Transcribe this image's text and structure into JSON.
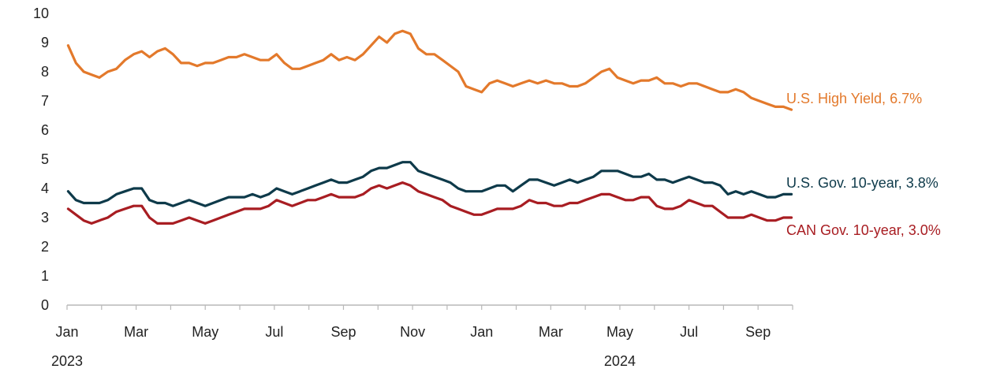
{
  "chart_data": {
    "type": "line",
    "title": "",
    "xlabel": "",
    "ylabel": "",
    "ylim": [
      0,
      10
    ],
    "yticks": [
      "0",
      "1",
      "2",
      "3",
      "4",
      "5",
      "6",
      "7",
      "8",
      "9",
      "10"
    ],
    "grid": false,
    "legend": "inline labels at right end of each line",
    "x_tick_labels": [
      "Jan",
      "Mar",
      "May",
      "Jul",
      "Sep",
      "Nov",
      "Jan",
      "Mar",
      "May",
      "Jul",
      "Sep"
    ],
    "x_tick_dates": [
      "2023-01",
      "2023-03",
      "2023-05",
      "2023-07",
      "2023-09",
      "2023-11",
      "2024-01",
      "2024-03",
      "2024-05",
      "2024-07",
      "2024-09"
    ],
    "year_labels": [
      {
        "label": "2023",
        "date": "2023-01"
      },
      {
        "label": "2024",
        "date": "2024-05"
      }
    ],
    "x_range": [
      "2023-01",
      "2024-10"
    ],
    "series": [
      {
        "name": "U.S. High Yield, 6.7%",
        "color": "#E3792B",
        "points": [
          [
            "2023-01-02",
            8.9
          ],
          [
            "2023-01-09",
            8.3
          ],
          [
            "2023-01-16",
            8.0
          ],
          [
            "2023-01-23",
            7.9
          ],
          [
            "2023-01-30",
            7.8
          ],
          [
            "2023-02-06",
            8.0
          ],
          [
            "2023-02-13",
            8.1
          ],
          [
            "2023-02-20",
            8.4
          ],
          [
            "2023-02-27",
            8.6
          ],
          [
            "2023-03-06",
            8.7
          ],
          [
            "2023-03-13",
            8.5
          ],
          [
            "2023-03-20",
            8.7
          ],
          [
            "2023-03-27",
            8.8
          ],
          [
            "2023-04-03",
            8.6
          ],
          [
            "2023-04-10",
            8.3
          ],
          [
            "2023-04-17",
            8.3
          ],
          [
            "2023-04-24",
            8.2
          ],
          [
            "2023-05-01",
            8.3
          ],
          [
            "2023-05-08",
            8.3
          ],
          [
            "2023-05-15",
            8.4
          ],
          [
            "2023-05-22",
            8.5
          ],
          [
            "2023-05-29",
            8.5
          ],
          [
            "2023-06-05",
            8.6
          ],
          [
            "2023-06-12",
            8.5
          ],
          [
            "2023-06-19",
            8.4
          ],
          [
            "2023-06-26",
            8.4
          ],
          [
            "2023-07-03",
            8.6
          ],
          [
            "2023-07-10",
            8.3
          ],
          [
            "2023-07-17",
            8.1
          ],
          [
            "2023-07-24",
            8.1
          ],
          [
            "2023-07-31",
            8.2
          ],
          [
            "2023-08-07",
            8.3
          ],
          [
            "2023-08-14",
            8.4
          ],
          [
            "2023-08-21",
            8.6
          ],
          [
            "2023-08-28",
            8.4
          ],
          [
            "2023-09-04",
            8.5
          ],
          [
            "2023-09-11",
            8.4
          ],
          [
            "2023-09-18",
            8.6
          ],
          [
            "2023-09-25",
            8.9
          ],
          [
            "2023-10-02",
            9.2
          ],
          [
            "2023-10-09",
            9.0
          ],
          [
            "2023-10-16",
            9.3
          ],
          [
            "2023-10-23",
            9.4
          ],
          [
            "2023-10-30",
            9.3
          ],
          [
            "2023-11-06",
            8.8
          ],
          [
            "2023-11-13",
            8.6
          ],
          [
            "2023-11-20",
            8.6
          ],
          [
            "2023-11-27",
            8.4
          ],
          [
            "2023-12-04",
            8.2
          ],
          [
            "2023-12-11",
            8.0
          ],
          [
            "2023-12-18",
            7.5
          ],
          [
            "2023-12-25",
            7.4
          ],
          [
            "2024-01-01",
            7.3
          ],
          [
            "2024-01-08",
            7.6
          ],
          [
            "2024-01-15",
            7.7
          ],
          [
            "2024-01-22",
            7.6
          ],
          [
            "2024-01-29",
            7.5
          ],
          [
            "2024-02-05",
            7.6
          ],
          [
            "2024-02-12",
            7.7
          ],
          [
            "2024-02-19",
            7.6
          ],
          [
            "2024-02-26",
            7.7
          ],
          [
            "2024-03-04",
            7.6
          ],
          [
            "2024-03-11",
            7.6
          ],
          [
            "2024-03-18",
            7.5
          ],
          [
            "2024-03-25",
            7.5
          ],
          [
            "2024-04-01",
            7.6
          ],
          [
            "2024-04-08",
            7.8
          ],
          [
            "2024-04-15",
            8.0
          ],
          [
            "2024-04-22",
            8.1
          ],
          [
            "2024-04-29",
            7.8
          ],
          [
            "2024-05-06",
            7.7
          ],
          [
            "2024-05-13",
            7.6
          ],
          [
            "2024-05-20",
            7.7
          ],
          [
            "2024-05-27",
            7.7
          ],
          [
            "2024-06-03",
            7.8
          ],
          [
            "2024-06-10",
            7.6
          ],
          [
            "2024-06-17",
            7.6
          ],
          [
            "2024-06-24",
            7.5
          ],
          [
            "2024-07-01",
            7.6
          ],
          [
            "2024-07-08",
            7.6
          ],
          [
            "2024-07-15",
            7.5
          ],
          [
            "2024-07-22",
            7.4
          ],
          [
            "2024-07-29",
            7.3
          ],
          [
            "2024-08-05",
            7.3
          ],
          [
            "2024-08-12",
            7.4
          ],
          [
            "2024-08-19",
            7.3
          ],
          [
            "2024-08-26",
            7.1
          ],
          [
            "2024-09-02",
            7.0
          ],
          [
            "2024-09-09",
            6.9
          ],
          [
            "2024-09-16",
            6.8
          ],
          [
            "2024-09-23",
            6.8
          ],
          [
            "2024-09-30",
            6.7
          ]
        ]
      },
      {
        "name": "U.S. Gov. 10-year, 3.8%",
        "color": "#0E3A4A",
        "points": [
          [
            "2023-01-02",
            3.9
          ],
          [
            "2023-01-09",
            3.6
          ],
          [
            "2023-01-16",
            3.5
          ],
          [
            "2023-01-23",
            3.5
          ],
          [
            "2023-01-30",
            3.5
          ],
          [
            "2023-02-06",
            3.6
          ],
          [
            "2023-02-13",
            3.8
          ],
          [
            "2023-02-20",
            3.9
          ],
          [
            "2023-02-27",
            4.0
          ],
          [
            "2023-03-06",
            4.0
          ],
          [
            "2023-03-13",
            3.6
          ],
          [
            "2023-03-20",
            3.5
          ],
          [
            "2023-03-27",
            3.5
          ],
          [
            "2023-04-03",
            3.4
          ],
          [
            "2023-04-10",
            3.5
          ],
          [
            "2023-04-17",
            3.6
          ],
          [
            "2023-04-24",
            3.5
          ],
          [
            "2023-05-01",
            3.4
          ],
          [
            "2023-05-08",
            3.5
          ],
          [
            "2023-05-15",
            3.6
          ],
          [
            "2023-05-22",
            3.7
          ],
          [
            "2023-05-29",
            3.7
          ],
          [
            "2023-06-05",
            3.7
          ],
          [
            "2023-06-12",
            3.8
          ],
          [
            "2023-06-19",
            3.7
          ],
          [
            "2023-06-26",
            3.8
          ],
          [
            "2023-07-03",
            4.0
          ],
          [
            "2023-07-10",
            3.9
          ],
          [
            "2023-07-17",
            3.8
          ],
          [
            "2023-07-24",
            3.9
          ],
          [
            "2023-07-31",
            4.0
          ],
          [
            "2023-08-07",
            4.1
          ],
          [
            "2023-08-14",
            4.2
          ],
          [
            "2023-08-21",
            4.3
          ],
          [
            "2023-08-28",
            4.2
          ],
          [
            "2023-09-04",
            4.2
          ],
          [
            "2023-09-11",
            4.3
          ],
          [
            "2023-09-18",
            4.4
          ],
          [
            "2023-09-25",
            4.6
          ],
          [
            "2023-10-02",
            4.7
          ],
          [
            "2023-10-09",
            4.7
          ],
          [
            "2023-10-16",
            4.8
          ],
          [
            "2023-10-23",
            4.9
          ],
          [
            "2023-10-30",
            4.9
          ],
          [
            "2023-11-06",
            4.6
          ],
          [
            "2023-11-13",
            4.5
          ],
          [
            "2023-11-20",
            4.4
          ],
          [
            "2023-11-27",
            4.3
          ],
          [
            "2023-12-04",
            4.2
          ],
          [
            "2023-12-11",
            4.0
          ],
          [
            "2023-12-18",
            3.9
          ],
          [
            "2023-12-25",
            3.9
          ],
          [
            "2024-01-01",
            3.9
          ],
          [
            "2024-01-08",
            4.0
          ],
          [
            "2024-01-15",
            4.1
          ],
          [
            "2024-01-22",
            4.1
          ],
          [
            "2024-01-29",
            3.9
          ],
          [
            "2024-02-05",
            4.1
          ],
          [
            "2024-02-12",
            4.3
          ],
          [
            "2024-02-19",
            4.3
          ],
          [
            "2024-02-26",
            4.2
          ],
          [
            "2024-03-04",
            4.1
          ],
          [
            "2024-03-11",
            4.2
          ],
          [
            "2024-03-18",
            4.3
          ],
          [
            "2024-03-25",
            4.2
          ],
          [
            "2024-04-01",
            4.3
          ],
          [
            "2024-04-08",
            4.4
          ],
          [
            "2024-04-15",
            4.6
          ],
          [
            "2024-04-22",
            4.6
          ],
          [
            "2024-04-29",
            4.6
          ],
          [
            "2024-05-06",
            4.5
          ],
          [
            "2024-05-13",
            4.4
          ],
          [
            "2024-05-20",
            4.4
          ],
          [
            "2024-05-27",
            4.5
          ],
          [
            "2024-06-03",
            4.3
          ],
          [
            "2024-06-10",
            4.3
          ],
          [
            "2024-06-17",
            4.2
          ],
          [
            "2024-06-24",
            4.3
          ],
          [
            "2024-07-01",
            4.4
          ],
          [
            "2024-07-08",
            4.3
          ],
          [
            "2024-07-15",
            4.2
          ],
          [
            "2024-07-22",
            4.2
          ],
          [
            "2024-07-29",
            4.1
          ],
          [
            "2024-08-05",
            3.8
          ],
          [
            "2024-08-12",
            3.9
          ],
          [
            "2024-08-19",
            3.8
          ],
          [
            "2024-08-26",
            3.9
          ],
          [
            "2024-09-02",
            3.8
          ],
          [
            "2024-09-09",
            3.7
          ],
          [
            "2024-09-16",
            3.7
          ],
          [
            "2024-09-23",
            3.8
          ],
          [
            "2024-09-30",
            3.8
          ]
        ]
      },
      {
        "name": "CAN Gov. 10-year, 3.0%",
        "color": "#A81D22",
        "points": [
          [
            "2023-01-02",
            3.3
          ],
          [
            "2023-01-09",
            3.1
          ],
          [
            "2023-01-16",
            2.9
          ],
          [
            "2023-01-23",
            2.8
          ],
          [
            "2023-01-30",
            2.9
          ],
          [
            "2023-02-06",
            3.0
          ],
          [
            "2023-02-13",
            3.2
          ],
          [
            "2023-02-20",
            3.3
          ],
          [
            "2023-02-27",
            3.4
          ],
          [
            "2023-03-06",
            3.4
          ],
          [
            "2023-03-13",
            3.0
          ],
          [
            "2023-03-20",
            2.8
          ],
          [
            "2023-03-27",
            2.8
          ],
          [
            "2023-04-03",
            2.8
          ],
          [
            "2023-04-10",
            2.9
          ],
          [
            "2023-04-17",
            3.0
          ],
          [
            "2023-04-24",
            2.9
          ],
          [
            "2023-05-01",
            2.8
          ],
          [
            "2023-05-08",
            2.9
          ],
          [
            "2023-05-15",
            3.0
          ],
          [
            "2023-05-22",
            3.1
          ],
          [
            "2023-05-29",
            3.2
          ],
          [
            "2023-06-05",
            3.3
          ],
          [
            "2023-06-12",
            3.3
          ],
          [
            "2023-06-19",
            3.3
          ],
          [
            "2023-06-26",
            3.4
          ],
          [
            "2023-07-03",
            3.6
          ],
          [
            "2023-07-10",
            3.5
          ],
          [
            "2023-07-17",
            3.4
          ],
          [
            "2023-07-24",
            3.5
          ],
          [
            "2023-07-31",
            3.6
          ],
          [
            "2023-08-07",
            3.6
          ],
          [
            "2023-08-14",
            3.7
          ],
          [
            "2023-08-21",
            3.8
          ],
          [
            "2023-08-28",
            3.7
          ],
          [
            "2023-09-04",
            3.7
          ],
          [
            "2023-09-11",
            3.7
          ],
          [
            "2023-09-18",
            3.8
          ],
          [
            "2023-09-25",
            4.0
          ],
          [
            "2023-10-02",
            4.1
          ],
          [
            "2023-10-09",
            4.0
          ],
          [
            "2023-10-16",
            4.1
          ],
          [
            "2023-10-23",
            4.2
          ],
          [
            "2023-10-30",
            4.1
          ],
          [
            "2023-11-06",
            3.9
          ],
          [
            "2023-11-13",
            3.8
          ],
          [
            "2023-11-20",
            3.7
          ],
          [
            "2023-11-27",
            3.6
          ],
          [
            "2023-12-04",
            3.4
          ],
          [
            "2023-12-11",
            3.3
          ],
          [
            "2023-12-18",
            3.2
          ],
          [
            "2023-12-25",
            3.1
          ],
          [
            "2024-01-01",
            3.1
          ],
          [
            "2024-01-08",
            3.2
          ],
          [
            "2024-01-15",
            3.3
          ],
          [
            "2024-01-22",
            3.3
          ],
          [
            "2024-01-29",
            3.3
          ],
          [
            "2024-02-05",
            3.4
          ],
          [
            "2024-02-12",
            3.6
          ],
          [
            "2024-02-19",
            3.5
          ],
          [
            "2024-02-26",
            3.5
          ],
          [
            "2024-03-04",
            3.4
          ],
          [
            "2024-03-11",
            3.4
          ],
          [
            "2024-03-18",
            3.5
          ],
          [
            "2024-03-25",
            3.5
          ],
          [
            "2024-04-01",
            3.6
          ],
          [
            "2024-04-08",
            3.7
          ],
          [
            "2024-04-15",
            3.8
          ],
          [
            "2024-04-22",
            3.8
          ],
          [
            "2024-04-29",
            3.7
          ],
          [
            "2024-05-06",
            3.6
          ],
          [
            "2024-05-13",
            3.6
          ],
          [
            "2024-05-20",
            3.7
          ],
          [
            "2024-05-27",
            3.7
          ],
          [
            "2024-06-03",
            3.4
          ],
          [
            "2024-06-10",
            3.3
          ],
          [
            "2024-06-17",
            3.3
          ],
          [
            "2024-06-24",
            3.4
          ],
          [
            "2024-07-01",
            3.6
          ],
          [
            "2024-07-08",
            3.5
          ],
          [
            "2024-07-15",
            3.4
          ],
          [
            "2024-07-22",
            3.4
          ],
          [
            "2024-07-29",
            3.2
          ],
          [
            "2024-08-05",
            3.0
          ],
          [
            "2024-08-12",
            3.0
          ],
          [
            "2024-08-19",
            3.0
          ],
          [
            "2024-08-26",
            3.1
          ],
          [
            "2024-09-02",
            3.0
          ],
          [
            "2024-09-09",
            2.9
          ],
          [
            "2024-09-16",
            2.9
          ],
          [
            "2024-09-23",
            3.0
          ],
          [
            "2024-09-30",
            3.0
          ]
        ]
      }
    ]
  }
}
